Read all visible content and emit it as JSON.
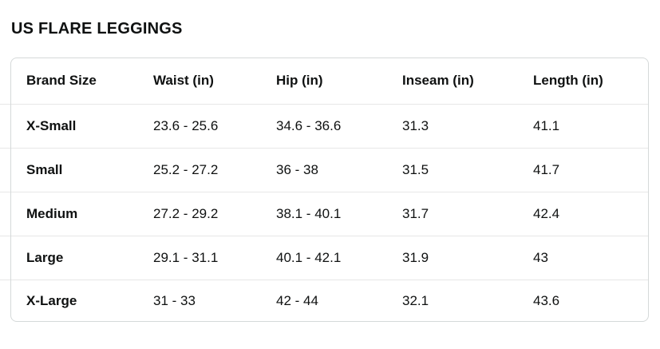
{
  "page": {
    "title": "US FLARE LEGGINGS"
  },
  "colors": {
    "text": "#0F1111",
    "card_border": "#D5D9D9",
    "row_divider": "#E7E7E7",
    "background": "#FFFFFF"
  },
  "table": {
    "columns": [
      "Brand Size",
      "Waist (in)",
      "Hip (in)",
      "Inseam (in)",
      "Length (in)"
    ],
    "rows": [
      {
        "size": "X-Small",
        "waist": "23.6 - 25.6",
        "hip": "34.6 - 36.6",
        "inseam": "31.3",
        "length": "41.1"
      },
      {
        "size": "Small",
        "waist": "25.2 - 27.2",
        "hip": "36 - 38",
        "inseam": "31.5",
        "length": "41.7"
      },
      {
        "size": "Medium",
        "waist": "27.2 - 29.2",
        "hip": "38.1 - 40.1",
        "inseam": "31.7",
        "length": "42.4"
      },
      {
        "size": "Large",
        "waist": "29.1 - 31.1",
        "hip": "40.1 - 42.1",
        "inseam": "31.9",
        "length": "43"
      },
      {
        "size": "X-Large",
        "waist": "31 - 33",
        "hip": "42 - 44",
        "inseam": "32.1",
        "length": "43.6"
      }
    ]
  }
}
